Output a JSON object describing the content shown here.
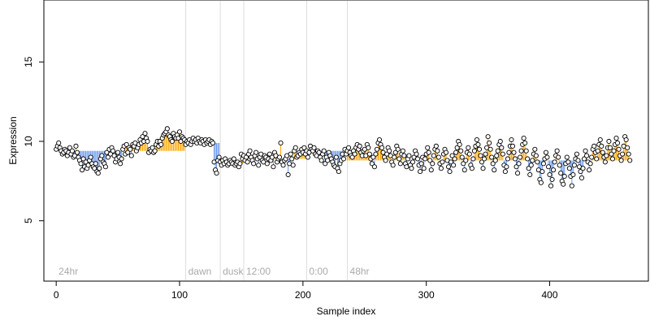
{
  "chart_data": {
    "type": "scatter",
    "title": "",
    "xlabel": "Sample index",
    "ylabel": "Expression",
    "xlim": [
      -10,
      480
    ],
    "ylim": [
      1.2,
      18.9
    ],
    "x_ticks": [
      0,
      100,
      200,
      300,
      400
    ],
    "y_ticks": [
      5,
      10,
      15
    ],
    "grid": false,
    "legend": "none",
    "colors": {
      "above_baseline": "#ffa500",
      "below_baseline": "#6495ed",
      "point_fill": "#ffffff",
      "point_stroke": "#000000",
      "divider": "#dddddd",
      "period_label": "#aaaaaa"
    },
    "segments": [
      {
        "label": "24hr",
        "x_start": 0,
        "x_end": 105,
        "baseline": 9.4
      },
      {
        "label": "dawn",
        "x_start": 105,
        "x_end": 133,
        "baseline": 9.9
      },
      {
        "label": "dusk",
        "x_start": 133,
        "x_end": 152,
        "baseline": 8.6
      },
      {
        "label": "12:00",
        "x_start": 152,
        "x_end": 203,
        "baseline": 8.9
      },
      {
        "label": "0:00",
        "x_start": 203,
        "x_end": 236,
        "baseline": 9.4
      },
      {
        "label": "48hr",
        "x_start": 236,
        "x_end": 462,
        "baseline": 8.8
      }
    ],
    "dividers": [
      105,
      133,
      152,
      203,
      236
    ],
    "series": [
      {
        "y": [
          9.5,
          9.7,
          9.9,
          9.6,
          9.4,
          9.2,
          9.3,
          9.5,
          9.4,
          9.1,
          9.3,
          9.6,
          9.2,
          9.4,
          9.0,
          9.1,
          9.7,
          9.3,
          9.0,
          8.8,
          8.6,
          8.2,
          8.9,
          8.4,
          8.7,
          8.3,
          8.5,
          8.8,
          9.0,
          8.6,
          8.4,
          8.3,
          8.6,
          8.1,
          8.0,
          8.3,
          8.9,
          9.1,
          8.7,
          8.6,
          8.4,
          9.3,
          9.0,
          9.5,
          9.2,
          9.6,
          9.4,
          9.1,
          8.7,
          8.9,
          9.3,
          9.0,
          8.6,
          8.9,
          9.5,
          9.7,
          9.2,
          9.8,
          9.3,
          9.6,
          9.5,
          9.1,
          9.8,
          9.7,
          9.9,
          9.4,
          9.6,
          9.8,
          10.1,
          9.9,
          10.3,
          10.0,
          10.5,
          10.2,
          10.0,
          9.3,
          9.5,
          9.4,
          9.6,
          9.3,
          9.4,
          9.8,
          10.0,
          9.7,
          10.0,
          9.8,
          10.2,
          10.4,
          10.5,
          10.6,
          10.8,
          10.4,
          10.3,
          10.1,
          10.0,
          10.5,
          10.3,
          10.2,
          10.4,
          10.2,
          10.6,
          10.0,
          10.3,
          10.2,
          10.1,
          9.8,
          10.0,
          9.9,
          10.1,
          9.8,
          10.0,
          10.2,
          10.0,
          10.1,
          9.9,
          10.2,
          10.0,
          9.9,
          10.1,
          10.0,
          9.8,
          10.1,
          9.9,
          10.0,
          10.1,
          9.8,
          10.0,
          9.9,
          8.7,
          8.2,
          8.0,
          8.8,
          9.0,
          8.7,
          8.5,
          8.8,
          8.6,
          8.9,
          8.7,
          8.5,
          8.6,
          8.8,
          8.7,
          8.6,
          8.9,
          8.5,
          8.6,
          8.7,
          8.4,
          8.6,
          9.2,
          8.9,
          9.1,
          8.8,
          9.0,
          8.7,
          9.2,
          9.4,
          9.0,
          8.8,
          8.6,
          9.1,
          9.3,
          8.9,
          8.5,
          9.0,
          9.2,
          8.8,
          8.7,
          9.1,
          9.0,
          8.6,
          8.9,
          9.2,
          8.8,
          9.0,
          8.4,
          9.3,
          9.1,
          8.7,
          8.9,
          9.0,
          9.9,
          8.7,
          8.5,
          8.8,
          8.9,
          9.1,
          7.9,
          8.6,
          9.2,
          8.9,
          8.5,
          9.4,
          9.6,
          9.0,
          9.1,
          9.3,
          9.2,
          9.5,
          9.3,
          9.6,
          9.2,
          9.4,
          9.0,
          9.3,
          9.7,
          9.5,
          9.4,
          9.6,
          9.2,
          9.1,
          9.4,
          9.3,
          9.0,
          8.8,
          9.2,
          9.4,
          8.6,
          9.0,
          8.8,
          9.3,
          9.1,
          8.9,
          8.7,
          8.5,
          8.4,
          9.0,
          8.3,
          8.1,
          8.6,
          8.8,
          9.2,
          8.9,
          9.5,
          9.2,
          9.4,
          9.6,
          9.3,
          9.1,
          9.0,
          9.4,
          9.2,
          9.6,
          9.8,
          9.5,
          9.7,
          9.3,
          9.1,
          9.4,
          9.5,
          9.1,
          9.8,
          9.6,
          9.2,
          8.9,
          8.6,
          9.0,
          8.4,
          9.2,
          9.5,
          9.9,
          10.1,
          9.8,
          9.6,
          9.3,
          9.0,
          8.8,
          9.2,
          9.6,
          9.4,
          9.1,
          8.7,
          8.5,
          9.0,
          9.3,
          9.7,
          9.5,
          8.9,
          8.6,
          9.2,
          9.4,
          9.1,
          8.6,
          8.4,
          8.9,
          9.1,
          8.5,
          8.3,
          8.7,
          9.0,
          9.4,
          9.2,
          8.9,
          8.5,
          8.1,
          8.6,
          9.0,
          8.3,
          8.9,
          9.2,
          9.6,
          9.3,
          8.8,
          8.2,
          8.6,
          9.1,
          9.5,
          9.7,
          9.4,
          9.0,
          8.6,
          8.3,
          8.7,
          9.2,
          9.5,
          9.3,
          8.8,
          8.4,
          8.1,
          8.7,
          9.1,
          8.5,
          8.9,
          9.3,
          9.6,
          10.0,
          9.8,
          9.4,
          9.0,
          8.6,
          8.2,
          8.8,
          9.3,
          9.6,
          9.2,
          8.5,
          8.3,
          8.9,
          9.4,
          9.7,
          10.1,
          9.8,
          9.5,
          9.1,
          8.7,
          8.3,
          8.9,
          9.2,
          9.6,
          10.3,
          9.9,
          9.5,
          9.0,
          8.6,
          8.2,
          8.8,
          9.1,
          9.4,
          9.8,
          10.0,
          9.6,
          9.2,
          8.5,
          8.1,
          8.4,
          8.9,
          9.3,
          9.7,
          10.1,
          9.7,
          9.3,
          8.9,
          8.4,
          8.0,
          8.6,
          9.0,
          9.4,
          9.8,
          10.2,
          9.9,
          9.4,
          8.9,
          8.3,
          7.9,
          8.5,
          8.8,
          9.2,
          9.5,
          9.1,
          8.7,
          8.2,
          7.6,
          7.4,
          8.1,
          8.6,
          8.9,
          9.3,
          9.0,
          8.4,
          7.9,
          7.2,
          7.6,
          8.2,
          8.7,
          9.1,
          9.4,
          9.0,
          8.5,
          8.0,
          7.5,
          7.3,
          7.8,
          8.6,
          9.0,
          8.7,
          8.3,
          7.8,
          7.2,
          7.9,
          8.5,
          8.9,
          9.2,
          8.8,
          8.4,
          8.1,
          7.7,
          8.3,
          8.9,
          9.4,
          9.1,
          8.7,
          8.2,
          8.6,
          9.0,
          9.5,
          9.7,
          9.3,
          8.9,
          9.4,
          9.8,
          10.1,
          9.7,
          9.3,
          9.0,
          8.7,
          9.1,
          9.6,
          10.0,
          9.6,
          9.2,
          8.9,
          9.4,
          9.8,
          10.2,
          9.9,
          9.5,
          9.1,
          8.8,
          9.2,
          9.7,
          10.3,
          10.1,
          9.6,
          9.2,
          8.8
        ]
      }
    ]
  }
}
